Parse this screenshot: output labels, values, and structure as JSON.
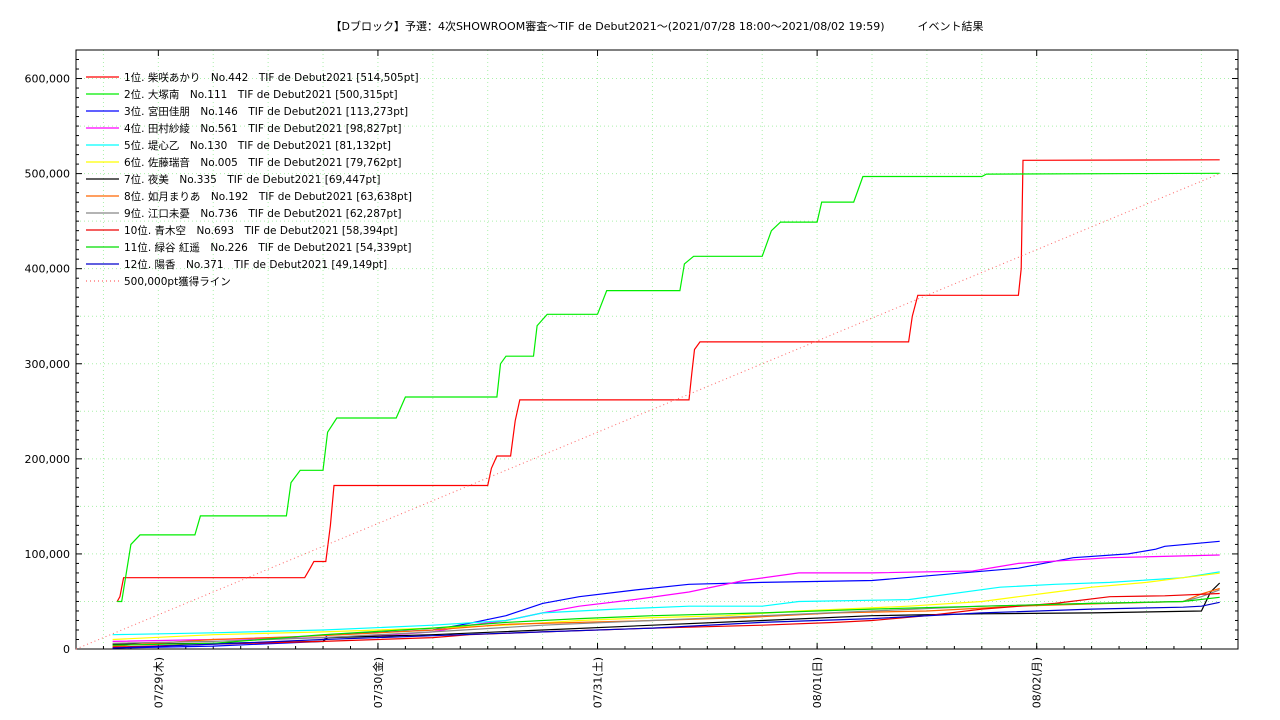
{
  "chart_data": {
    "type": "line",
    "title": "【Dブロック】予選：4次SHOWROOM審査～TIF de Debut2021～(2021/07/28 18:00～2021/08/02 19:59)　　　イベント結果",
    "xlabel": "",
    "ylabel": "",
    "x_ticks": [
      "07/29(木)",
      "07/30(金)",
      "07/31(土)",
      "08/01(日)",
      "08/02(月)"
    ],
    "x_domain_hours": [
      0,
      122
    ],
    "y_ticks": [
      0,
      100000,
      200000,
      300000,
      400000,
      500000,
      600000
    ],
    "y_tick_labels": [
      "0",
      "100,000",
      "200,000",
      "300,000",
      "400,000",
      "500,000",
      "600,000"
    ],
    "ylim": [
      0,
      630000
    ],
    "grid": true,
    "legend_position": "top-left",
    "series": [
      {
        "name": "1位. 柴咲あかり　No.442　TIF de Debut2021 [514,505pt]",
        "color": "#ff0000",
        "style": "solid",
        "points": [
          [
            1.5,
            50000
          ],
          [
            1.8,
            55000
          ],
          [
            2.2,
            75000
          ],
          [
            12,
            75000
          ],
          [
            22,
            75000
          ],
          [
            22.6,
            85000
          ],
          [
            23,
            92000
          ],
          [
            24.3,
            92000
          ],
          [
            24.8,
            130000
          ],
          [
            25.2,
            172000
          ],
          [
            40,
            172000
          ],
          [
            42,
            172000
          ],
          [
            42.4,
            190000
          ],
          [
            43,
            203000
          ],
          [
            44.5,
            203000
          ],
          [
            45,
            240000
          ],
          [
            45.5,
            262000
          ],
          [
            52,
            262000
          ],
          [
            64,
            262000
          ],
          [
            64.3,
            290000
          ],
          [
            64.6,
            315000
          ],
          [
            65.2,
            323000
          ],
          [
            72,
            323000
          ],
          [
            88,
            323000
          ],
          [
            88.4,
            350000
          ],
          [
            89,
            372000
          ],
          [
            100,
            372000
          ],
          [
            100.3,
            400000
          ],
          [
            100.5,
            514000
          ],
          [
            122,
            514505
          ]
        ]
      },
      {
        "name": "2位. 大塚南　No.111　TIF de Debut2021 [500,315pt]",
        "color": "#00ee00",
        "style": "solid",
        "points": [
          [
            1.5,
            50000
          ],
          [
            2,
            50000
          ],
          [
            3,
            110000
          ],
          [
            4,
            120000
          ],
          [
            8,
            120000
          ],
          [
            10,
            120000
          ],
          [
            10.6,
            140000
          ],
          [
            20,
            140000
          ],
          [
            20.5,
            175000
          ],
          [
            21.5,
            188000
          ],
          [
            24,
            188000
          ],
          [
            24.5,
            228000
          ],
          [
            25.5,
            243000
          ],
          [
            32,
            243000
          ],
          [
            33,
            265000
          ],
          [
            40,
            265000
          ],
          [
            43,
            265000
          ],
          [
            43.4,
            300000
          ],
          [
            44,
            308000
          ],
          [
            47,
            308000
          ],
          [
            47.4,
            340000
          ],
          [
            48.5,
            352000
          ],
          [
            54,
            352000
          ],
          [
            55,
            377000
          ],
          [
            59,
            377000
          ],
          [
            63,
            377000
          ],
          [
            63.5,
            405000
          ],
          [
            64.5,
            413000
          ],
          [
            72,
            413000
          ],
          [
            73,
            440000
          ],
          [
            74,
            449000
          ],
          [
            78,
            449000
          ],
          [
            78.5,
            470000
          ],
          [
            82,
            470000
          ],
          [
            83,
            497000
          ],
          [
            96,
            497000
          ],
          [
            96.5,
            499500
          ],
          [
            122,
            500315
          ]
        ]
      },
      {
        "name": "3位. 宮田佳朋　No.146　TIF de Debut2021 [113,273pt]",
        "color": "#0000ff",
        "style": "solid",
        "points": [
          [
            1,
            1000
          ],
          [
            12,
            3000
          ],
          [
            24,
            8000
          ],
          [
            24.5,
            15000
          ],
          [
            36,
            20000
          ],
          [
            40,
            27000
          ],
          [
            44,
            35000
          ],
          [
            48,
            48000
          ],
          [
            52,
            55000
          ],
          [
            58,
            62000
          ],
          [
            64,
            68000
          ],
          [
            72,
            70000
          ],
          [
            84,
            72000
          ],
          [
            100,
            85000
          ],
          [
            106,
            96000
          ],
          [
            112,
            100000
          ],
          [
            115,
            105000
          ],
          [
            116,
            108000
          ],
          [
            122,
            113273
          ]
        ]
      },
      {
        "name": "4位. 田村紗綾　No.561　TIF de Debut2021 [98,827pt]",
        "color": "#ff00ff",
        "style": "solid",
        "points": [
          [
            1,
            8000
          ],
          [
            12,
            10000
          ],
          [
            24,
            12000
          ],
          [
            30,
            14000
          ],
          [
            36,
            18000
          ],
          [
            40,
            25000
          ],
          [
            44,
            30000
          ],
          [
            48,
            38000
          ],
          [
            52,
            45000
          ],
          [
            58,
            52000
          ],
          [
            64,
            60000
          ],
          [
            70,
            72000
          ],
          [
            76,
            80000
          ],
          [
            84,
            80000
          ],
          [
            95,
            82000
          ],
          [
            100,
            90000
          ],
          [
            110,
            96000
          ],
          [
            122,
            98827
          ]
        ]
      },
      {
        "name": "5位. 堤心乙　No.130　TIF de Debut2021 [81,132pt]",
        "color": "#00ffff",
        "style": "solid",
        "points": [
          [
            1,
            15000
          ],
          [
            12,
            17000
          ],
          [
            24,
            20000
          ],
          [
            36,
            25000
          ],
          [
            44,
            30000
          ],
          [
            48,
            38000
          ],
          [
            56,
            42000
          ],
          [
            64,
            45000
          ],
          [
            72,
            45000
          ],
          [
            76,
            50000
          ],
          [
            88,
            52000
          ],
          [
            98,
            65000
          ],
          [
            104,
            68000
          ],
          [
            110,
            70000
          ],
          [
            118,
            75000
          ],
          [
            122,
            81132
          ]
        ]
      },
      {
        "name": "6位. 佐藤瑞音　No.005　TIF de Debut2021 [79,762pt]",
        "color": "#ffff00",
        "style": "solid",
        "points": [
          [
            1,
            10000
          ],
          [
            12,
            15000
          ],
          [
            24,
            18000
          ],
          [
            36,
            22000
          ],
          [
            44,
            25000
          ],
          [
            52,
            30000
          ],
          [
            60,
            33000
          ],
          [
            68,
            35000
          ],
          [
            76,
            40000
          ],
          [
            88,
            45000
          ],
          [
            96,
            50000
          ],
          [
            100,
            55000
          ],
          [
            104,
            60000
          ],
          [
            108,
            65000
          ],
          [
            114,
            70000
          ],
          [
            118,
            75000
          ],
          [
            122,
            79762
          ]
        ]
      },
      {
        "name": "7位. 夜美　No.335　TIF de Debut2021 [69,447pt]",
        "color": "#000000",
        "style": "solid",
        "points": [
          [
            1,
            5000
          ],
          [
            12,
            6000
          ],
          [
            24,
            8000
          ],
          [
            24.5,
            12000
          ],
          [
            36,
            15000
          ],
          [
            48,
            20000
          ],
          [
            60,
            25000
          ],
          [
            72,
            30000
          ],
          [
            84,
            35000
          ],
          [
            96,
            37000
          ],
          [
            108,
            38000
          ],
          [
            120,
            40000
          ],
          [
            121,
            60000
          ],
          [
            122,
            69447
          ]
        ]
      },
      {
        "name": "8位. 如月まりあ　No.192　TIF de Debut2021 [63,638pt]",
        "color": "#ff6600",
        "style": "solid",
        "points": [
          [
            1,
            3000
          ],
          [
            12,
            10000
          ],
          [
            24,
            14000
          ],
          [
            36,
            20000
          ],
          [
            44,
            26000
          ],
          [
            52,
            28000
          ],
          [
            60,
            30000
          ],
          [
            70,
            33000
          ],
          [
            80,
            38000
          ],
          [
            90,
            40000
          ],
          [
            100,
            45000
          ],
          [
            110,
            48000
          ],
          [
            118,
            50000
          ],
          [
            120,
            58000
          ],
          [
            122,
            63638
          ]
        ]
      },
      {
        "name": "9位. 江口未憂　No.736　TIF de Debut2021 [62,287pt]",
        "color": "#888888",
        "style": "solid",
        "points": [
          [
            1,
            6000
          ],
          [
            12,
            8000
          ],
          [
            24,
            12000
          ],
          [
            36,
            18000
          ],
          [
            48,
            25000
          ],
          [
            60,
            30000
          ],
          [
            72,
            35000
          ],
          [
            84,
            40000
          ],
          [
            96,
            45000
          ],
          [
            108,
            48000
          ],
          [
            118,
            50000
          ],
          [
            120,
            55000
          ],
          [
            122,
            62287
          ]
        ]
      },
      {
        "name": "10位. 青木空　No.693　TIF de Debut2021 [58,394pt]",
        "color": "#ee0000",
        "style": "solid",
        "points": [
          [
            1,
            2000
          ],
          [
            12,
            5000
          ],
          [
            24,
            8000
          ],
          [
            30,
            10000
          ],
          [
            36,
            12000
          ],
          [
            40,
            15000
          ],
          [
            48,
            18000
          ],
          [
            60,
            22000
          ],
          [
            72,
            25000
          ],
          [
            80,
            28000
          ],
          [
            84,
            30000
          ],
          [
            90,
            35000
          ],
          [
            96,
            42000
          ],
          [
            104,
            48000
          ],
          [
            110,
            55000
          ],
          [
            116,
            56000
          ],
          [
            122,
            58394
          ]
        ]
      },
      {
        "name": "11位. 緑谷 紅遥　No.226　TIF de Debut2021 [54,339pt]",
        "color": "#00dd00",
        "style": "solid",
        "points": [
          [
            1,
            4000
          ],
          [
            12,
            6000
          ],
          [
            24,
            15000
          ],
          [
            36,
            22000
          ],
          [
            44,
            28000
          ],
          [
            52,
            32000
          ],
          [
            60,
            35000
          ],
          [
            72,
            38000
          ],
          [
            84,
            42000
          ],
          [
            96,
            45000
          ],
          [
            108,
            48000
          ],
          [
            118,
            50000
          ],
          [
            122,
            54339
          ]
        ]
      },
      {
        "name": "12位. 陽香　No.371　TIF de Debut2021 [49,149pt]",
        "color": "#0000cc",
        "style": "solid",
        "points": [
          [
            1,
            1000
          ],
          [
            12,
            5000
          ],
          [
            24,
            10000
          ],
          [
            36,
            14000
          ],
          [
            48,
            18000
          ],
          [
            60,
            22000
          ],
          [
            72,
            28000
          ],
          [
            84,
            32000
          ],
          [
            96,
            38000
          ],
          [
            108,
            42000
          ],
          [
            118,
            44000
          ],
          [
            120,
            45000
          ],
          [
            122,
            49149
          ]
        ]
      },
      {
        "name": "500,000pt獲得ライン",
        "color": "#ff6666",
        "style": "dotted",
        "points": [
          [
            -3,
            0
          ],
          [
            122,
            500000
          ]
        ]
      }
    ]
  }
}
